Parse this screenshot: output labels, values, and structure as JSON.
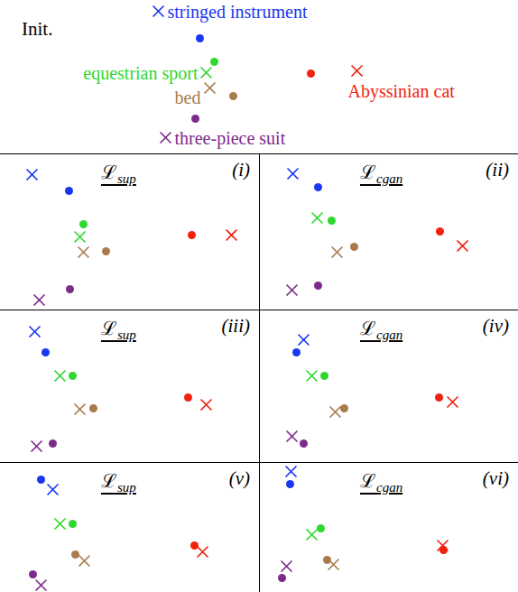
{
  "chart_data": [
    {
      "type": "scatter",
      "title": "Init.",
      "xlim": [
        0,
        574
      ],
      "ylim": [
        0,
        170
      ],
      "tick_labels": false,
      "series": [
        {
          "name": "stringed instrument",
          "color": "#1a37f0",
          "marker": "cross",
          "x": [
            175
          ],
          "y": [
            158
          ]
        },
        {
          "color": "#1a37f0",
          "marker": "dot",
          "x": [
            221
          ],
          "y": [
            128
          ]
        },
        {
          "name": "equestrian sport",
          "color": "#2fd82f",
          "marker": "cross",
          "x": [
            228
          ],
          "y": [
            90
          ]
        },
        {
          "color": "#2fd82f",
          "marker": "dot",
          "x": [
            237
          ],
          "y": [
            102
          ]
        },
        {
          "name": "bed",
          "color": "#a97b4c",
          "marker": "cross",
          "x": [
            232
          ],
          "y": [
            73
          ]
        },
        {
          "color": "#a97b4c",
          "marker": "dot",
          "x": [
            258
          ],
          "y": [
            64
          ]
        },
        {
          "name": "Abyssinian cat",
          "color": "#f0220f",
          "marker": "cross",
          "x": [
            395
          ],
          "y": [
            92
          ]
        },
        {
          "color": "#f0220f",
          "marker": "dot",
          "x": [
            344
          ],
          "y": [
            89
          ]
        },
        {
          "name": "three-piece suit",
          "color": "#7d2b8b",
          "marker": "cross",
          "x": [
            183
          ],
          "y": [
            18
          ]
        },
        {
          "color": "#7d2b8b",
          "marker": "dot",
          "x": [
            216
          ],
          "y": [
            39
          ]
        }
      ]
    },
    {
      "type": "scatter",
      "title": "ℒ",
      "title_subscript": "sup",
      "panel": "(i)",
      "xlim": [
        0,
        287
      ],
      "ylim": [
        0,
        173
      ],
      "tick_labels": false,
      "series": [
        {
          "color": "#1a37f0",
          "marker": "cross",
          "x": [
            35
          ],
          "y": [
            150
          ]
        },
        {
          "color": "#1a37f0",
          "marker": "dot",
          "x": [
            76
          ],
          "y": [
            132
          ]
        },
        {
          "color": "#2fd82f",
          "marker": "cross",
          "x": [
            88
          ],
          "y": [
            81
          ]
        },
        {
          "color": "#2fd82f",
          "marker": "dot",
          "x": [
            92
          ],
          "y": [
            95
          ]
        },
        {
          "color": "#a97b4c",
          "marker": "cross",
          "x": [
            92
          ],
          "y": [
            64
          ]
        },
        {
          "color": "#a97b4c",
          "marker": "dot",
          "x": [
            117
          ],
          "y": [
            65
          ]
        },
        {
          "color": "#f0220f",
          "marker": "cross",
          "x": [
            256
          ],
          "y": [
            83
          ]
        },
        {
          "color": "#f0220f",
          "marker": "dot",
          "x": [
            212
          ],
          "y": [
            83
          ]
        },
        {
          "color": "#7d2b8b",
          "marker": "cross",
          "x": [
            43
          ],
          "y": [
            11
          ]
        },
        {
          "color": "#7d2b8b",
          "marker": "dot",
          "x": [
            77
          ],
          "y": [
            23
          ]
        }
      ]
    },
    {
      "type": "scatter",
      "title": "ℒ",
      "title_subscript": "cgan",
      "panel": "(ii)",
      "xlim": [
        0,
        287
      ],
      "ylim": [
        0,
        173
      ],
      "tick_labels": false,
      "series": [
        {
          "color": "#1a37f0",
          "marker": "cross",
          "x": [
            37
          ],
          "y": [
            151
          ]
        },
        {
          "color": "#1a37f0",
          "marker": "dot",
          "x": [
            65
          ],
          "y": [
            136
          ]
        },
        {
          "color": "#2fd82f",
          "marker": "cross",
          "x": [
            64
          ],
          "y": [
            102
          ]
        },
        {
          "color": "#2fd82f",
          "marker": "dot",
          "x": [
            80
          ],
          "y": [
            99
          ]
        },
        {
          "color": "#a97b4c",
          "marker": "cross",
          "x": [
            86
          ],
          "y": [
            64
          ]
        },
        {
          "color": "#a97b4c",
          "marker": "dot",
          "x": [
            105
          ],
          "y": [
            70
          ]
        },
        {
          "color": "#f0220f",
          "marker": "cross",
          "x": [
            225
          ],
          "y": [
            71
          ]
        },
        {
          "color": "#f0220f",
          "marker": "dot",
          "x": [
            200
          ],
          "y": [
            87
          ]
        },
        {
          "color": "#7d2b8b",
          "marker": "cross",
          "x": [
            36
          ],
          "y": [
            22
          ]
        },
        {
          "color": "#7d2b8b",
          "marker": "dot",
          "x": [
            65
          ],
          "y": [
            27
          ]
        }
      ]
    },
    {
      "type": "scatter",
      "title": "ℒ",
      "title_subscript": "sup",
      "panel": "(iii)",
      "xlim": [
        0,
        287
      ],
      "ylim": [
        0,
        169
      ],
      "tick_labels": false,
      "series": [
        {
          "color": "#1a37f0",
          "marker": "cross",
          "x": [
            38
          ],
          "y": [
            145
          ]
        },
        {
          "color": "#1a37f0",
          "marker": "dot",
          "x": [
            50
          ],
          "y": [
            122
          ]
        },
        {
          "color": "#2fd82f",
          "marker": "cross",
          "x": [
            66
          ],
          "y": [
            96
          ]
        },
        {
          "color": "#2fd82f",
          "marker": "dot",
          "x": [
            80
          ],
          "y": [
            96
          ]
        },
        {
          "color": "#a97b4c",
          "marker": "cross",
          "x": [
            88
          ],
          "y": [
            59
          ]
        },
        {
          "color": "#a97b4c",
          "marker": "dot",
          "x": [
            103
          ],
          "y": [
            60
          ]
        },
        {
          "color": "#f0220f",
          "marker": "cross",
          "x": [
            228
          ],
          "y": [
            64
          ]
        },
        {
          "color": "#f0220f",
          "marker": "dot",
          "x": [
            208
          ],
          "y": [
            72
          ]
        },
        {
          "color": "#7d2b8b",
          "marker": "cross",
          "x": [
            40
          ],
          "y": [
            18
          ]
        },
        {
          "color": "#7d2b8b",
          "marker": "dot",
          "x": [
            58
          ],
          "y": [
            21
          ]
        }
      ]
    },
    {
      "type": "scatter",
      "title": "ℒ",
      "title_subscript": "cgan",
      "panel": "(iv)",
      "xlim": [
        0,
        287
      ],
      "ylim": [
        0,
        169
      ],
      "tick_labels": false,
      "series": [
        {
          "color": "#1a37f0",
          "marker": "cross",
          "x": [
            49
          ],
          "y": [
            136
          ]
        },
        {
          "color": "#1a37f0",
          "marker": "dot",
          "x": [
            41
          ],
          "y": [
            122
          ]
        },
        {
          "color": "#2fd82f",
          "marker": "cross",
          "x": [
            58
          ],
          "y": [
            96
          ]
        },
        {
          "color": "#2fd82f",
          "marker": "dot",
          "x": [
            72
          ],
          "y": [
            96
          ]
        },
        {
          "color": "#a97b4c",
          "marker": "cross",
          "x": [
            84
          ],
          "y": [
            56
          ]
        },
        {
          "color": "#a97b4c",
          "marker": "dot",
          "x": [
            94
          ],
          "y": [
            60
          ]
        },
        {
          "color": "#f0220f",
          "marker": "cross",
          "x": [
            214
          ],
          "y": [
            67
          ]
        },
        {
          "color": "#f0220f",
          "marker": "dot",
          "x": [
            199
          ],
          "y": [
            72
          ]
        },
        {
          "color": "#7d2b8b",
          "marker": "cross",
          "x": [
            36
          ],
          "y": [
            29
          ]
        },
        {
          "color": "#7d2b8b",
          "marker": "dot",
          "x": [
            49
          ],
          "y": [
            21
          ]
        }
      ]
    },
    {
      "type": "scatter",
      "title": "ℒ",
      "title_subscript": "sup",
      "panel": "(v)",
      "xlim": [
        0,
        287
      ],
      "ylim": [
        0,
        144
      ],
      "tick_labels": false,
      "series": [
        {
          "color": "#1a37f0",
          "marker": "cross",
          "x": [
            58
          ],
          "y": [
            114
          ]
        },
        {
          "color": "#1a37f0",
          "marker": "dot",
          "x": [
            45
          ],
          "y": [
            125
          ]
        },
        {
          "color": "#2fd82f",
          "marker": "cross",
          "x": [
            66
          ],
          "y": [
            76
          ]
        },
        {
          "color": "#2fd82f",
          "marker": "dot",
          "x": [
            80
          ],
          "y": [
            76
          ]
        },
        {
          "color": "#a97b4c",
          "marker": "cross",
          "x": [
            93
          ],
          "y": [
            35
          ]
        },
        {
          "color": "#a97b4c",
          "marker": "dot",
          "x": [
            83
          ],
          "y": [
            42
          ]
        },
        {
          "color": "#f0220f",
          "marker": "cross",
          "x": [
            224
          ],
          "y": [
            45
          ]
        },
        {
          "color": "#f0220f",
          "marker": "dot",
          "x": [
            215
          ],
          "y": [
            52
          ]
        },
        {
          "color": "#7d2b8b",
          "marker": "cross",
          "x": [
            45
          ],
          "y": [
            8
          ]
        },
        {
          "color": "#7d2b8b",
          "marker": "dot",
          "x": [
            36
          ],
          "y": [
            20
          ]
        }
      ]
    },
    {
      "type": "scatter",
      "title": "ℒ",
      "title_subscript": "cgan",
      "panel": "(vi)",
      "xlim": [
        0,
        287
      ],
      "ylim": [
        0,
        144
      ],
      "tick_labels": false,
      "series": [
        {
          "color": "#1a37f0",
          "marker": "cross",
          "x": [
            35
          ],
          "y": [
            134
          ]
        },
        {
          "color": "#1a37f0",
          "marker": "dot",
          "x": [
            34
          ],
          "y": [
            120
          ]
        },
        {
          "color": "#2fd82f",
          "marker": "cross",
          "x": [
            58
          ],
          "y": [
            64
          ]
        },
        {
          "color": "#2fd82f",
          "marker": "dot",
          "x": [
            68
          ],
          "y": [
            71
          ]
        },
        {
          "color": "#a97b4c",
          "marker": "cross",
          "x": [
            82
          ],
          "y": [
            31
          ]
        },
        {
          "color": "#a97b4c",
          "marker": "dot",
          "x": [
            75
          ],
          "y": [
            36
          ]
        },
        {
          "color": "#f0220f",
          "marker": "cross",
          "x": [
            203
          ],
          "y": [
            52
          ]
        },
        {
          "color": "#f0220f",
          "marker": "dot",
          "x": [
            204
          ],
          "y": [
            47
          ]
        },
        {
          "color": "#7d2b8b",
          "marker": "cross",
          "x": [
            30
          ],
          "y": [
            29
          ]
        },
        {
          "color": "#7d2b8b",
          "marker": "dot",
          "x": [
            25
          ],
          "y": [
            16
          ]
        }
      ]
    }
  ]
}
